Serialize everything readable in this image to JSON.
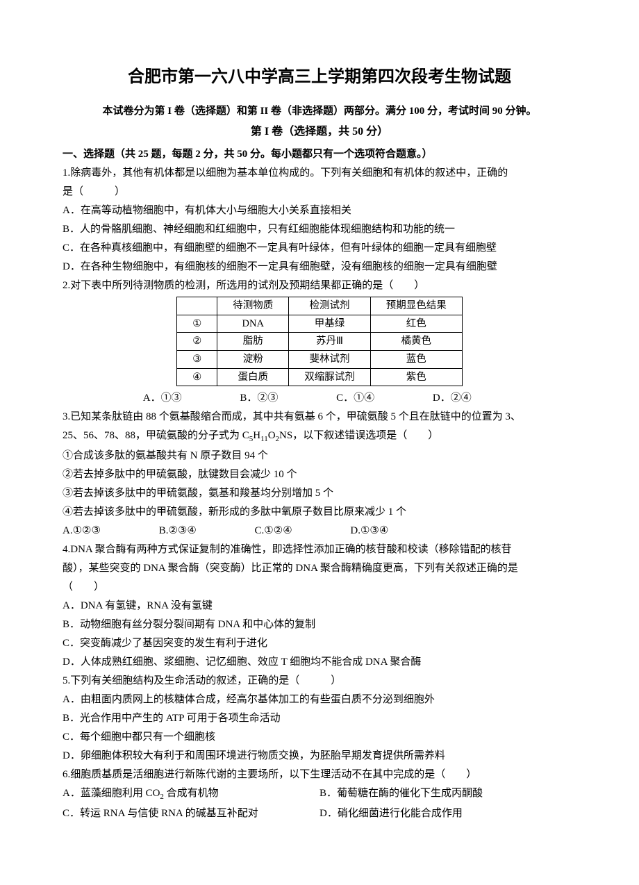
{
  "doc": {
    "title": "合肥市第一六八中学高三上学期第四次段考生物试题",
    "subtitle": "本试卷分为第 I 卷（选择题）和第 II 卷（非选择题）两部分。满分 100 分，考试时间 90 分钟。",
    "part_header": "第 I 卷（选择题，共 50 分）",
    "section1_header": "一、选择题（共 25 题，每题 2 分，共 50 分。每小题都只有一个选项符合题意。）"
  },
  "q1": {
    "stem_l1": "1.除病毒外，其他有机体都是以细胞为基本单位构成的。下列有关细胞和有机体的叙述中，正确的",
    "stem_l2": "是（　　　）",
    "A": "A．在高等动植物细胞中，有机体大小与细胞大小关系直接相关",
    "B": "B．人的骨骼肌细胞、神经细胞和红细胞中，只有红细胞能体现细胞结构和功能的统一",
    "C": "C．在各种真核细胞中，有细胞壁的细胞不一定具有叶绿体，但有叶绿体的细胞一定具有细胞壁",
    "D": "D．在各种生物细胞中，有细胞核的细胞不一定具有细胞壁，没有细胞核的细胞一定具有细胞壁"
  },
  "q2": {
    "stem": "2.对下表中所列待测物质的检测，所选用的试剂及预期结果都正确的是（　　）",
    "opt_A": "A．①③",
    "opt_B": "B．②③",
    "opt_C": "C．①④",
    "opt_D": "D．②④"
  },
  "table": {
    "h1": "",
    "h2": "待测物质",
    "h3": "检测试剂",
    "h4": "预期显色结果",
    "r1c1": "①",
    "r1c2": "DNA",
    "r1c3": "甲基绿",
    "r1c4": "红色",
    "r2c1": "②",
    "r2c2": "脂肪",
    "r2c3": "苏丹Ⅲ",
    "r2c4": "橘黄色",
    "r3c1": "③",
    "r3c2": "淀粉",
    "r3c3": "斐林试剂",
    "r3c4": "蓝色",
    "r4c1": "④",
    "r4c2": "蛋白质",
    "r4c3": "双缩脲试剂",
    "r4c4": "紫色"
  },
  "q3": {
    "stem_l1": "3.已知某条肽链由 88 个氨基酸缩合而成，其中共有氨基 6 个，甲硫氨酸 5 个且在肽链中的位置为 3、",
    "stem_l2_pre": "25、56、78、88，甲硫氨酸的分子式为 C",
    "stem_l2_s1": "5",
    "stem_l2_m1": "H",
    "stem_l2_s2": "11",
    "stem_l2_m2": "O",
    "stem_l2_s3": "2",
    "stem_l2_post": "NS，以下叙述错误选项是（　　）",
    "s1": "①合成该多肽的氨基酸共有 N 原子数目 94 个",
    "s2": "②若去掉多肽中的甲硫氨酸，肽键数目会减少 10 个",
    "s3": "③若去掉该多肽中的甲硫氨酸，氨基和羧基均分别增加 5 个",
    "s4": "④若去掉该多肽中的甲硫氨酸，新形成的多肽中氧原子数目比原来减少 1 个",
    "opt_A": "A.①②③",
    "opt_B": "B.②③④",
    "opt_C": "C.①②④",
    "opt_D": "D.①③④"
  },
  "q4": {
    "stem_l1": "4.DNA 聚合酶有两种方式保证复制的准确性，即选择性添加正确的核苷酸和校读（移除错配的核苷",
    "stem_l2": "酸），某些突变的 DNA 聚合酶（突变酶）比正常的 DNA 聚合酶精确度更高，下列有关叙述正确的是",
    "stem_l3": "（　　）",
    "A": "A．DNA 有氢键，RNA 没有氢键",
    "B": "B．动物细胞有丝分裂分裂间期有 DNA 和中心体的复制",
    "C": "C．突变酶减少了基因突变的发生有利于进化",
    "D": "D．人体成熟红细胞、浆细胞、记忆细胞、效应 T 细胞均不能合成 DNA 聚合酶"
  },
  "q5": {
    "stem": "5.下列有关细胞结构及生命活动的叙述，正确的是（　　　）",
    "A": "A．由粗面内质网上的核糖体合成，经高尔基体加工的有些蛋白质不分泌到细胞外",
    "B": "B．光合作用中产生的 ATP 可用于各项生命活动",
    "C": "C．每个细胞中都只有一个细胞核",
    "D": "D．卵细胞体积较大有利于和周围环境进行物质交换，为胚胎早期发育提供所需养料"
  },
  "q6": {
    "stem": "6.细胞质基质是活细胞进行新陈代谢的主要场所，以下生理活动不在其中完成的是（　　）",
    "A_pre": "A．蓝藻细胞利用 CO",
    "A_sub": "2",
    "A_post": " 合成有机物",
    "B": "B．葡萄糖在酶的催化下生成丙酮酸",
    "C": "C．转运 RNA 与信使 RNA 的碱基互补配对",
    "D": "D．硝化细菌进行化能合成作用"
  }
}
